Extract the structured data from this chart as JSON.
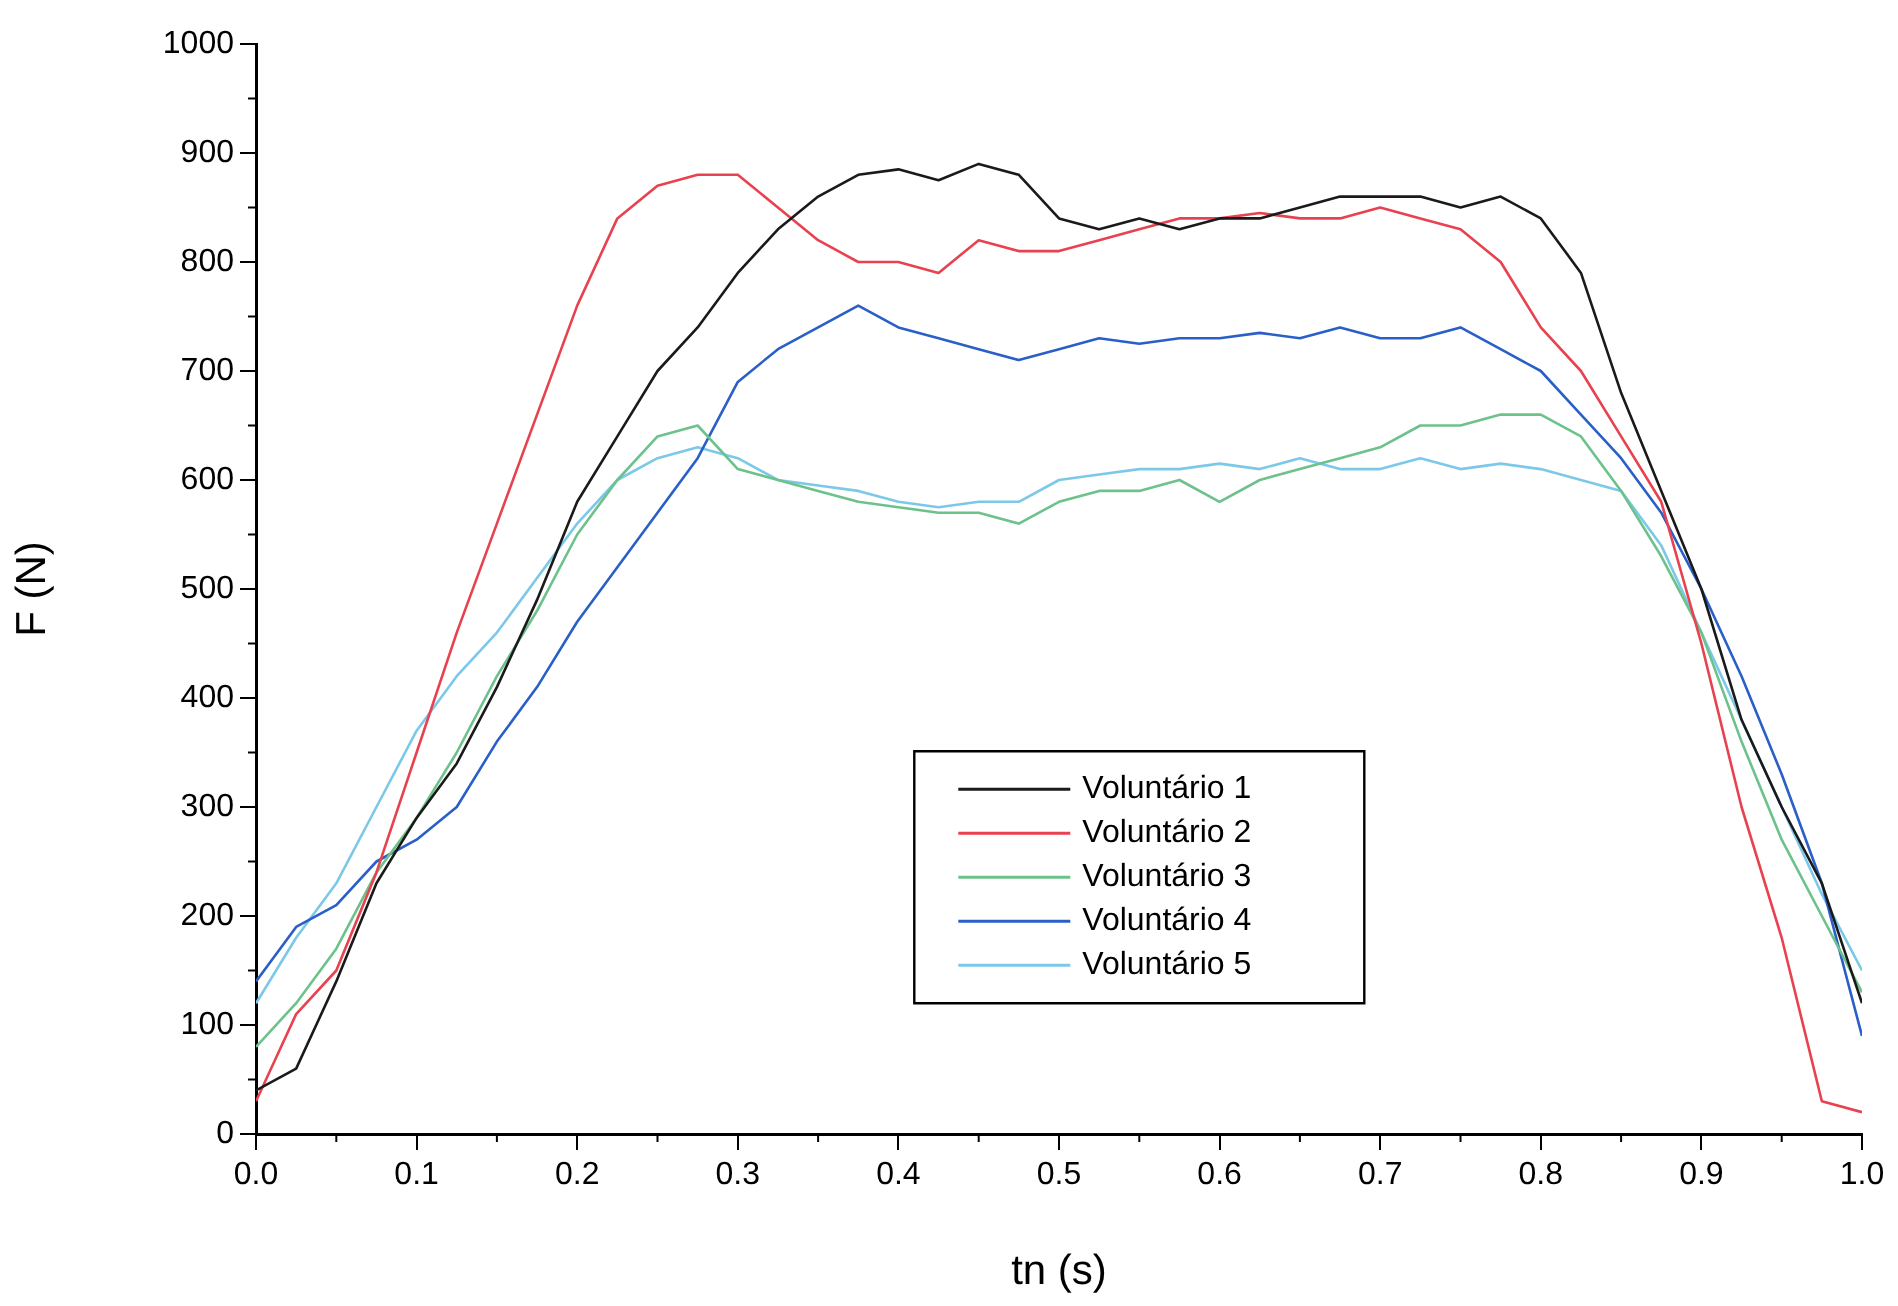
{
  "chart_data": {
    "type": "line",
    "xlabel": "tn (s)",
    "ylabel": "F (N)",
    "x": [
      0,
      0.025,
      0.05,
      0.075,
      0.1,
      0.125,
      0.15,
      0.175,
      0.2,
      0.225,
      0.25,
      0.275,
      0.3,
      0.325,
      0.35,
      0.375,
      0.4,
      0.425,
      0.45,
      0.475,
      0.5,
      0.525,
      0.55,
      0.575,
      0.6,
      0.625,
      0.65,
      0.675,
      0.7,
      0.725,
      0.75,
      0.775,
      0.8,
      0.825,
      0.85,
      0.875,
      0.9,
      0.925,
      0.95,
      0.975,
      1.0
    ],
    "series": [
      {
        "name": "Voluntário 1",
        "color": "#1a1a1a",
        "values": [
          40,
          60,
          140,
          230,
          290,
          340,
          410,
          490,
          580,
          640,
          700,
          740,
          790,
          830,
          860,
          880,
          885,
          875,
          890,
          880,
          840,
          830,
          840,
          830,
          840,
          840,
          850,
          860,
          860,
          860,
          850,
          860,
          840,
          790,
          680,
          590,
          500,
          380,
          300,
          230,
          120
        ]
      },
      {
        "name": "Voluntário 2",
        "color": "#e8414f",
        "values": [
          30,
          110,
          150,
          240,
          350,
          460,
          560,
          660,
          760,
          840,
          870,
          880,
          880,
          850,
          820,
          800,
          800,
          790,
          820,
          810,
          810,
          820,
          830,
          840,
          840,
          845,
          840,
          840,
          850,
          840,
          830,
          800,
          740,
          700,
          640,
          580,
          450,
          300,
          180,
          30,
          20
        ]
      },
      {
        "name": "Voluntário 3",
        "color": "#6cc28a",
        "values": [
          80,
          120,
          170,
          240,
          290,
          350,
          420,
          480,
          550,
          600,
          640,
          650,
          610,
          600,
          590,
          580,
          575,
          570,
          570,
          560,
          580,
          590,
          590,
          600,
          580,
          600,
          610,
          620,
          630,
          650,
          650,
          660,
          660,
          640,
          590,
          530,
          460,
          360,
          270,
          200,
          130
        ]
      },
      {
        "name": "Voluntário 4",
        "color": "#2a5fc8",
        "values": [
          140,
          190,
          210,
          250,
          270,
          300,
          360,
          410,
          470,
          520,
          570,
          620,
          690,
          720,
          740,
          760,
          740,
          730,
          720,
          710,
          720,
          730,
          725,
          730,
          730,
          735,
          730,
          740,
          730,
          730,
          740,
          720,
          700,
          660,
          620,
          570,
          500,
          420,
          330,
          230,
          90
        ]
      },
      {
        "name": "Voluntário 5",
        "color": "#7cc8e8",
        "values": [
          120,
          180,
          230,
          300,
          370,
          420,
          460,
          510,
          560,
          600,
          620,
          630,
          620,
          600,
          595,
          590,
          580,
          575,
          580,
          580,
          600,
          605,
          610,
          610,
          615,
          610,
          620,
          610,
          610,
          620,
          610,
          615,
          610,
          600,
          590,
          540,
          460,
          380,
          300,
          220,
          150
        ]
      }
    ],
    "xlim": [
      0,
      1.0
    ],
    "xticks": [
      {
        "value": 0,
        "label": "0.0"
      },
      0.1,
      0.2,
      0.3,
      0.4,
      0.5,
      0.6,
      0.7,
      0.8,
      0.9,
      {
        "value": 1.0,
        "label": "1.0"
      }
    ],
    "ylim": [
      0,
      1000
    ],
    "yticks": [
      0,
      100,
      200,
      300,
      400,
      500,
      600,
      700,
      800,
      900,
      1000
    ],
    "grid": false,
    "legend": "bottom",
    "marker": "none",
    "line_style": "solid"
  }
}
